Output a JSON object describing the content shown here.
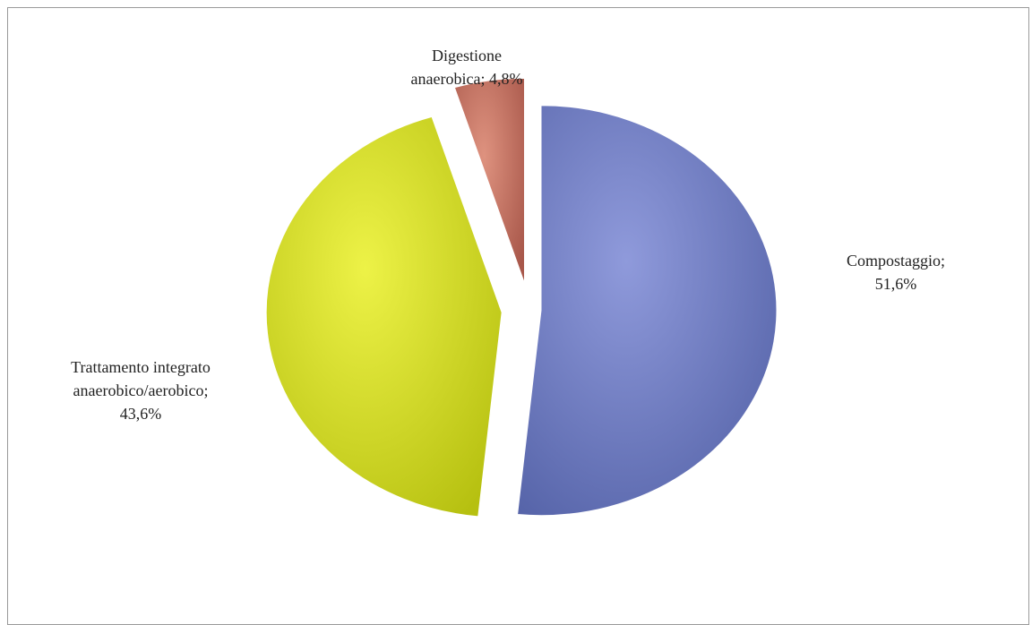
{
  "chart_data": {
    "type": "pie",
    "slices": [
      {
        "name": "Compostaggio",
        "value": 51.6,
        "label_lines": [
          "Compostaggio;",
          "51,6%"
        ],
        "color": "#6A78BE"
      },
      {
        "name": "Trattamento integrato anaerobico/aerobico",
        "value": 43.6,
        "label_lines": [
          "Trattamento integrato",
          "anaerobico/aerobico;",
          "43,6%"
        ],
        "color": "#D6E01E"
      },
      {
        "name": "Digestione anaerobica",
        "value": 4.8,
        "label_lines": [
          "Digestione",
          "anaerobica;  4,8%"
        ],
        "color": "#C4705F"
      }
    ],
    "start_angle_deg": 0,
    "direction": "clockwise",
    "exploded": true,
    "style": "3d-shaded"
  }
}
